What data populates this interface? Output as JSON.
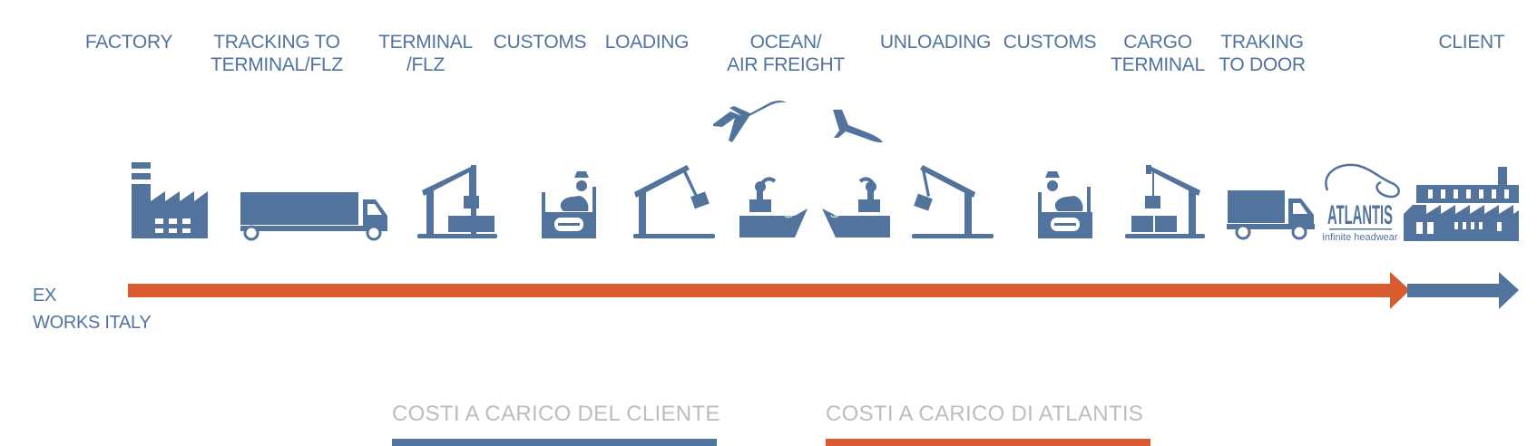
{
  "colors": {
    "blue": "#52739b",
    "orange": "#d95b30",
    "legend_text": "#bdbdbd"
  },
  "stages": [
    {
      "lines": [
        "FACTORY"
      ],
      "icon": "factory-icon"
    },
    {
      "lines": [
        "TRACKING TO",
        "TERMINAL/FLZ"
      ],
      "icon": "truck-icon"
    },
    {
      "lines": [
        "TERMINAL",
        "/FLZ"
      ],
      "icon": "crane-containers-icon"
    },
    {
      "lines": [
        "CUSTOMS"
      ],
      "icon": "customs-officer-icon"
    },
    {
      "lines": [
        "LOADING"
      ],
      "icon": "crane-loading-icon"
    },
    {
      "lines": [
        "OCEAN/",
        "AIR FREIGHT"
      ],
      "icon": "ship-plane-icon"
    },
    {
      "lines": [
        "UNLOADING"
      ],
      "icon": "crane-unloading-icon"
    },
    {
      "lines": [
        "CUSTOMS"
      ],
      "icon": "customs-officer-icon"
    },
    {
      "lines": [
        "CARGO",
        "TERMINAL"
      ],
      "icon": "crane-containers-icon"
    },
    {
      "lines": [
        "TRAKING",
        "TO DOOR"
      ],
      "icon": "truck-icon"
    },
    {
      "lines": [
        "CLIENT"
      ],
      "icon": "warehouse-icon"
    }
  ],
  "brand": {
    "name": "ATLANTIS",
    "tagline": "infinite headwear",
    "icon": "atlantis-logo-icon"
  },
  "ex_works": {
    "line1": "EX",
    "line2": "WORKS ITALY"
  },
  "legend": {
    "client": {
      "label": "COSTI A CARICO DEL CLIENTE",
      "color": "#52739b"
    },
    "atlantis": {
      "label": "COSTI A CARICO DI ATLANTIS",
      "color": "#d95b30"
    }
  }
}
